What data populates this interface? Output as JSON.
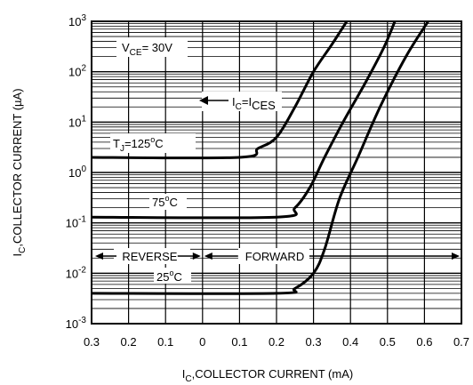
{
  "chart_data": {
    "type": "line",
    "title": "",
    "xlabel": "I_C,COLLECTOR CURRENT (mA)",
    "ylabel": "I_C,COLLECTOR CURRENT (µA)",
    "x_ticks": [
      "0.3",
      "0.2",
      "0.1",
      "0",
      "0.1",
      "0.2",
      "0.3",
      "0.4",
      "0.5",
      "0.6",
      "0.7"
    ],
    "x_axis_note": "left half: reverse bias (0.3 to 0); right half: forward bias (0 to 0.7)",
    "xlim": [
      -0.3,
      0.7
    ],
    "y_scale": "log",
    "ylim": [
      0.001,
      1000
    ],
    "y_ticks": [
      {
        "base": "10",
        "exp": "3"
      },
      {
        "base": "10",
        "exp": "2"
      },
      {
        "base": "10",
        "exp": "1"
      },
      {
        "base": "10",
        "exp": "0"
      },
      {
        "base": "10",
        "exp": "-1"
      },
      {
        "base": "10",
        "exp": "-2"
      },
      {
        "base": "10",
        "exp": "-3"
      }
    ],
    "grid": true,
    "series": [
      {
        "name": "T_J=125°C",
        "points": [
          [
            -0.3,
            2
          ],
          [
            0.1,
            2
          ],
          [
            0.15,
            3
          ],
          [
            0.2,
            5
          ],
          [
            0.25,
            20
          ],
          [
            0.3,
            100
          ],
          [
            0.35,
            350
          ],
          [
            0.39,
            1000
          ]
        ]
      },
      {
        "name": "75°C",
        "points": [
          [
            -0.3,
            0.13
          ],
          [
            0.2,
            0.13
          ],
          [
            0.25,
            0.2
          ],
          [
            0.29,
            0.5
          ],
          [
            0.33,
            2
          ],
          [
            0.38,
            10
          ],
          [
            0.44,
            60
          ],
          [
            0.49,
            300
          ],
          [
            0.52,
            1000
          ]
        ]
      },
      {
        "name": "25°C",
        "points": [
          [
            -0.3,
            0.004
          ],
          [
            0.2,
            0.004
          ],
          [
            0.25,
            0.005
          ],
          [
            0.3,
            0.01
          ],
          [
            0.33,
            0.03
          ],
          [
            0.37,
            0.3
          ],
          [
            0.42,
            2
          ],
          [
            0.48,
            20
          ],
          [
            0.55,
            200
          ],
          [
            0.61,
            1000
          ]
        ]
      }
    ],
    "annotations": {
      "vce": {
        "pre": "V",
        "sub": "CE",
        "post": "= 30V"
      },
      "ices": {
        "pre": "I",
        "sub1": "C",
        "mid": "=I",
        "sub2": "CES"
      },
      "tj": {
        "pre": "T",
        "sub": "J",
        "mid": "=125",
        "sup": "o",
        "post": "C"
      },
      "t75": {
        "pre": "75",
        "sup": "o",
        "post": "C"
      },
      "t25": {
        "pre": "25",
        "sup": "o",
        "post": "C"
      },
      "reverse": "REVERSE",
      "forward": "FORWARD"
    },
    "xlabel_parts": {
      "pre": "I",
      "sub": "C",
      "post": ",COLLECTOR CURRENT (mA)"
    },
    "ylabel_parts": {
      "pre": "I",
      "sub": "C",
      "post": ",COLLECTOR CURRENT (µA)"
    }
  }
}
